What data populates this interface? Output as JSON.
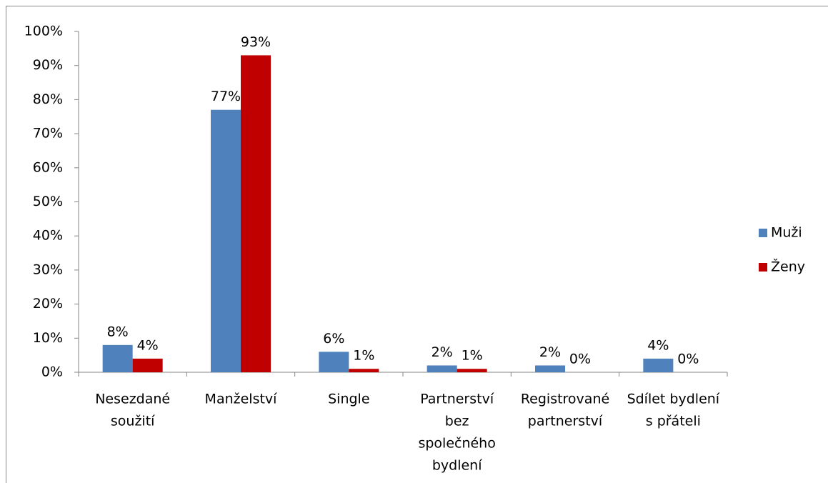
{
  "chart_data": {
    "type": "bar",
    "categories": [
      [
        "Nesezdané",
        "soužití"
      ],
      [
        "Manželství"
      ],
      [
        "Single"
      ],
      [
        "Partnerství",
        "bez",
        "společného",
        "bydlení"
      ],
      [
        "Registrované",
        "partnerství"
      ],
      [
        "Sdílet bydlení",
        "s přáteli"
      ]
    ],
    "series": [
      {
        "name": "Muži",
        "color": "#4f81bd",
        "values": [
          8,
          77,
          6,
          2,
          2,
          4
        ],
        "value_labels": [
          "8%",
          "77%",
          "6%",
          "2%",
          "2%",
          "4%"
        ]
      },
      {
        "name": "Ženy",
        "color": "#c00000",
        "values": [
          4,
          93,
          1,
          1,
          0,
          0
        ],
        "value_labels": [
          "4%",
          "93%",
          "1%",
          "1%",
          "0%",
          "0%"
        ]
      }
    ],
    "ylim": [
      0,
      100
    ],
    "yticks": [
      {
        "value": 0,
        "label": "0%"
      },
      {
        "value": 10,
        "label": "10%"
      },
      {
        "value": 20,
        "label": "20%"
      },
      {
        "value": 30,
        "label": "30%"
      },
      {
        "value": 40,
        "label": "40%"
      },
      {
        "value": 50,
        "label": "50%"
      },
      {
        "value": 60,
        "label": "60%"
      },
      {
        "value": 70,
        "label": "70%"
      },
      {
        "value": 80,
        "label": "80%"
      },
      {
        "value": 90,
        "label": "90%"
      },
      {
        "value": 100,
        "label": "100%"
      }
    ],
    "grid": false,
    "legend": "right"
  }
}
